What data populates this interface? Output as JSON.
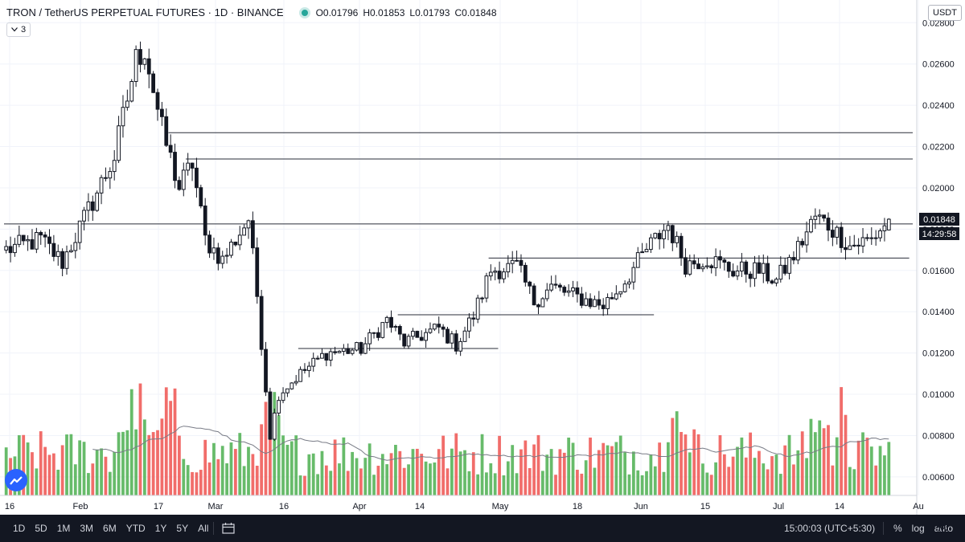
{
  "header": {
    "symbol": "TRON / TetherUS PERPETUAL FUTURES · 1D · BINANCE",
    "o_label": "O",
    "o_value": "0.01796",
    "h_label": "H",
    "h_value": "0.01853",
    "l_label": "L",
    "l_value": "0.01793",
    "c_label": "C",
    "c_value": "0.01848",
    "collapse_count": "3",
    "currency": "USDT"
  },
  "price_tag": {
    "value": "0.01848",
    "countdown": "14:29:58"
  },
  "bottom": {
    "ranges": [
      "1D",
      "5D",
      "1M",
      "3M",
      "6M",
      "YTD",
      "1Y",
      "5Y",
      "All"
    ],
    "time": "15:00:03 (UTC+5:30)",
    "percent": "%",
    "log": "log",
    "auto": "auto"
  },
  "colors": {
    "up": "#26a69a",
    "down": "#131722",
    "vol_up": "#4caf50",
    "vol_down": "#ef5350",
    "ma": "#787b86",
    "line": "#2a2e39"
  },
  "chart_data": {
    "type": "candlestick",
    "y_ticks": [
      "0.02800",
      "0.02600",
      "0.02400",
      "0.02200",
      "0.02000",
      "0.01800",
      "0.01600",
      "0.01400",
      "0.01200",
      "0.01000",
      "0.00800",
      "0.00600"
    ],
    "x_ticks": [
      "16",
      "Feb",
      "17",
      "Mar",
      "16",
      "Apr",
      "14",
      "May",
      "18",
      "Jun",
      "15",
      "Jul",
      "14",
      "Au"
    ],
    "ylim": [
      0.0051,
      0.0291
    ],
    "y_log": false,
    "bars": 205,
    "horizontal_levels": [
      {
        "price": 0.02267,
        "from_bar": 38,
        "to_bar": 205
      },
      {
        "price": 0.0214,
        "from_bar": 42,
        "to_bar": 205
      },
      {
        "price": 0.01825,
        "from_bar": 0,
        "to_bar": 205
      },
      {
        "price": 0.0166,
        "from_bar": 112,
        "to_bar": 204
      },
      {
        "price": 0.01385,
        "from_bar": 91,
        "to_bar": 145
      },
      {
        "price": 0.01222,
        "from_bar": 68,
        "to_bar": 109
      }
    ],
    "anchors": [
      [
        0,
        0.017
      ],
      [
        8,
        0.0175
      ],
      [
        13,
        0.0164
      ],
      [
        18,
        0.0185
      ],
      [
        25,
        0.0215
      ],
      [
        30,
        0.0262
      ],
      [
        32,
        0.0268
      ],
      [
        36,
        0.0228
      ],
      [
        40,
        0.02
      ],
      [
        43,
        0.0212
      ],
      [
        46,
        0.0175
      ],
      [
        50,
        0.0165
      ],
      [
        56,
        0.0185
      ],
      [
        58,
        0.0148
      ],
      [
        61,
        0.008
      ],
      [
        63,
        0.01
      ],
      [
        68,
        0.011
      ],
      [
        74,
        0.012
      ],
      [
        82,
        0.0122
      ],
      [
        88,
        0.0136
      ],
      [
        92,
        0.0125
      ],
      [
        100,
        0.0132
      ],
      [
        104,
        0.0124
      ],
      [
        108,
        0.0138
      ],
      [
        112,
        0.016
      ],
      [
        118,
        0.0162
      ],
      [
        122,
        0.0145
      ],
      [
        126,
        0.0152
      ],
      [
        132,
        0.0147
      ],
      [
        138,
        0.0143
      ],
      [
        142,
        0.0152
      ],
      [
        148,
        0.017
      ],
      [
        153,
        0.0182
      ],
      [
        157,
        0.0163
      ],
      [
        162,
        0.0166
      ],
      [
        168,
        0.016
      ],
      [
        174,
        0.016
      ],
      [
        178,
        0.0155
      ],
      [
        182,
        0.0167
      ],
      [
        187,
        0.0186
      ],
      [
        190,
        0.0182
      ],
      [
        195,
        0.0172
      ],
      [
        200,
        0.0175
      ],
      [
        204,
        0.01848
      ]
    ],
    "volume": {
      "max_label_free": true,
      "ma_period": 20
    }
  }
}
